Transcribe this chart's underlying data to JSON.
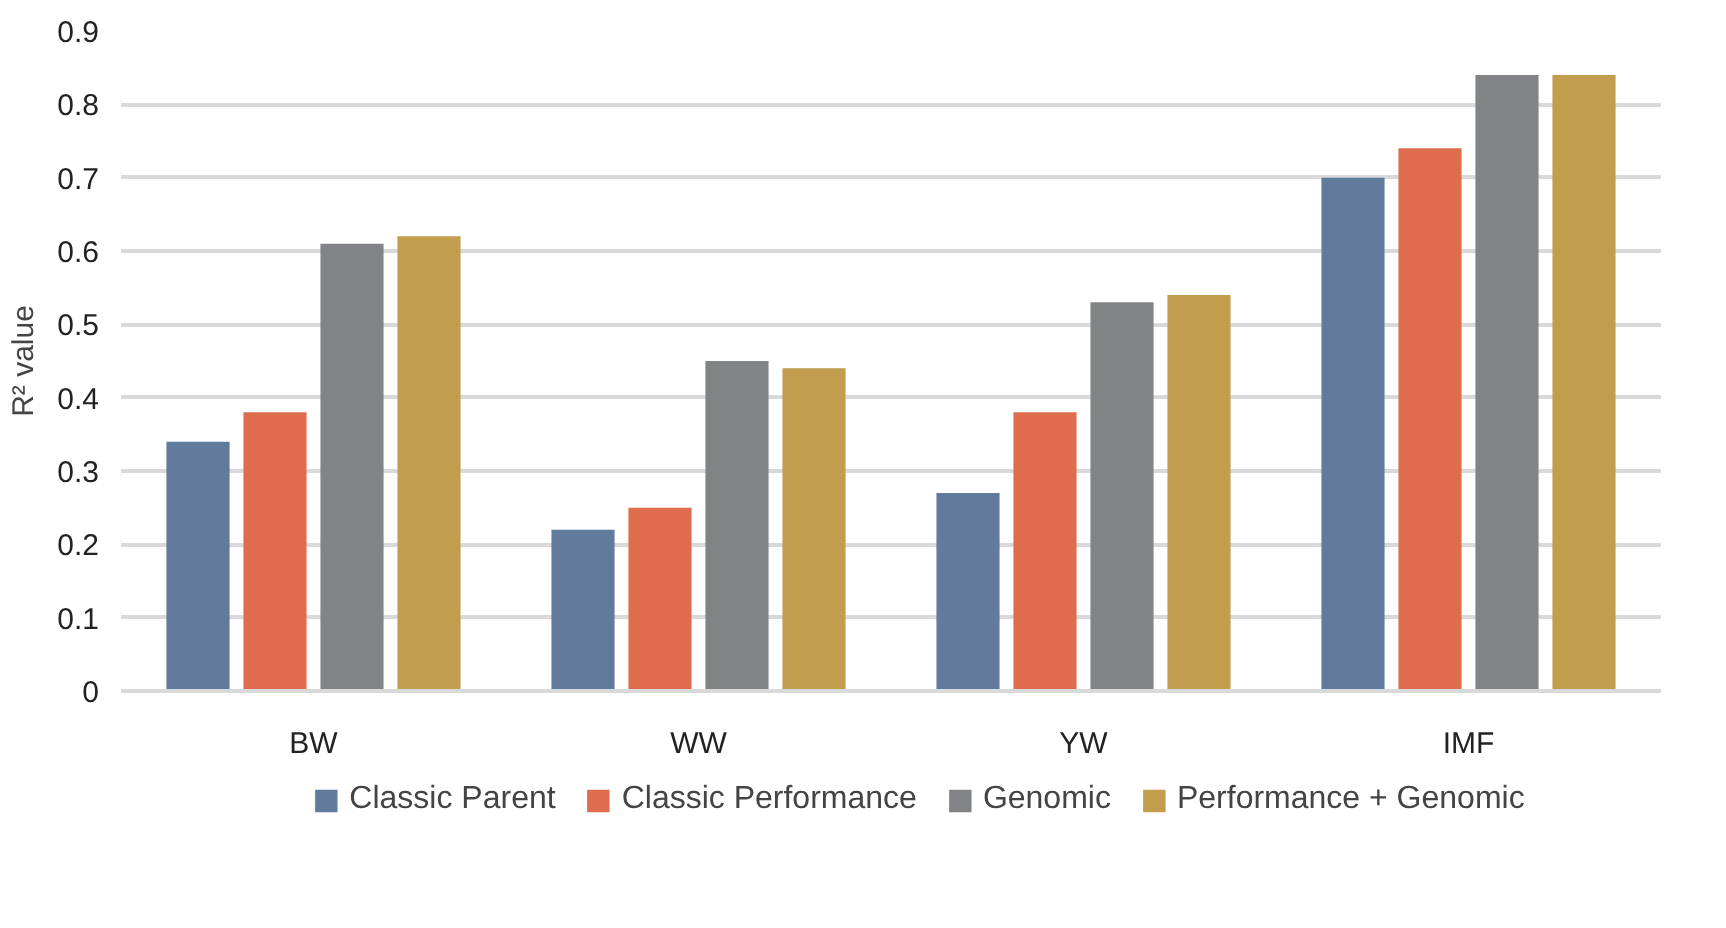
{
  "chart_data": {
    "type": "bar",
    "ylabel": "R² value",
    "categories": [
      "BW",
      "WW",
      "YW",
      "IMF"
    ],
    "series": [
      {
        "name": "Classic Parent",
        "color": "#627a9b",
        "values": [
          0.34,
          0.22,
          0.27,
          0.7
        ]
      },
      {
        "name": "Classic Performance",
        "color": "#df6c4c",
        "values": [
          0.38,
          0.25,
          0.38,
          0.74
        ]
      },
      {
        "name": "Genomic",
        "color": "#828387",
        "values": [
          0.61,
          0.45,
          0.53,
          0.84
        ]
      },
      {
        "name": "Performance + Genomic",
        "color": "#c39d4e",
        "values": [
          0.62,
          0.44,
          0.54,
          0.84
        ]
      }
    ],
    "ylim": [
      0,
      0.9
    ],
    "yticks": [
      0,
      0.1,
      0.2,
      0.3,
      0.4,
      0.5,
      0.6,
      0.7,
      0.8,
      0.9
    ],
    "grid": "y",
    "legend": "bottom"
  }
}
